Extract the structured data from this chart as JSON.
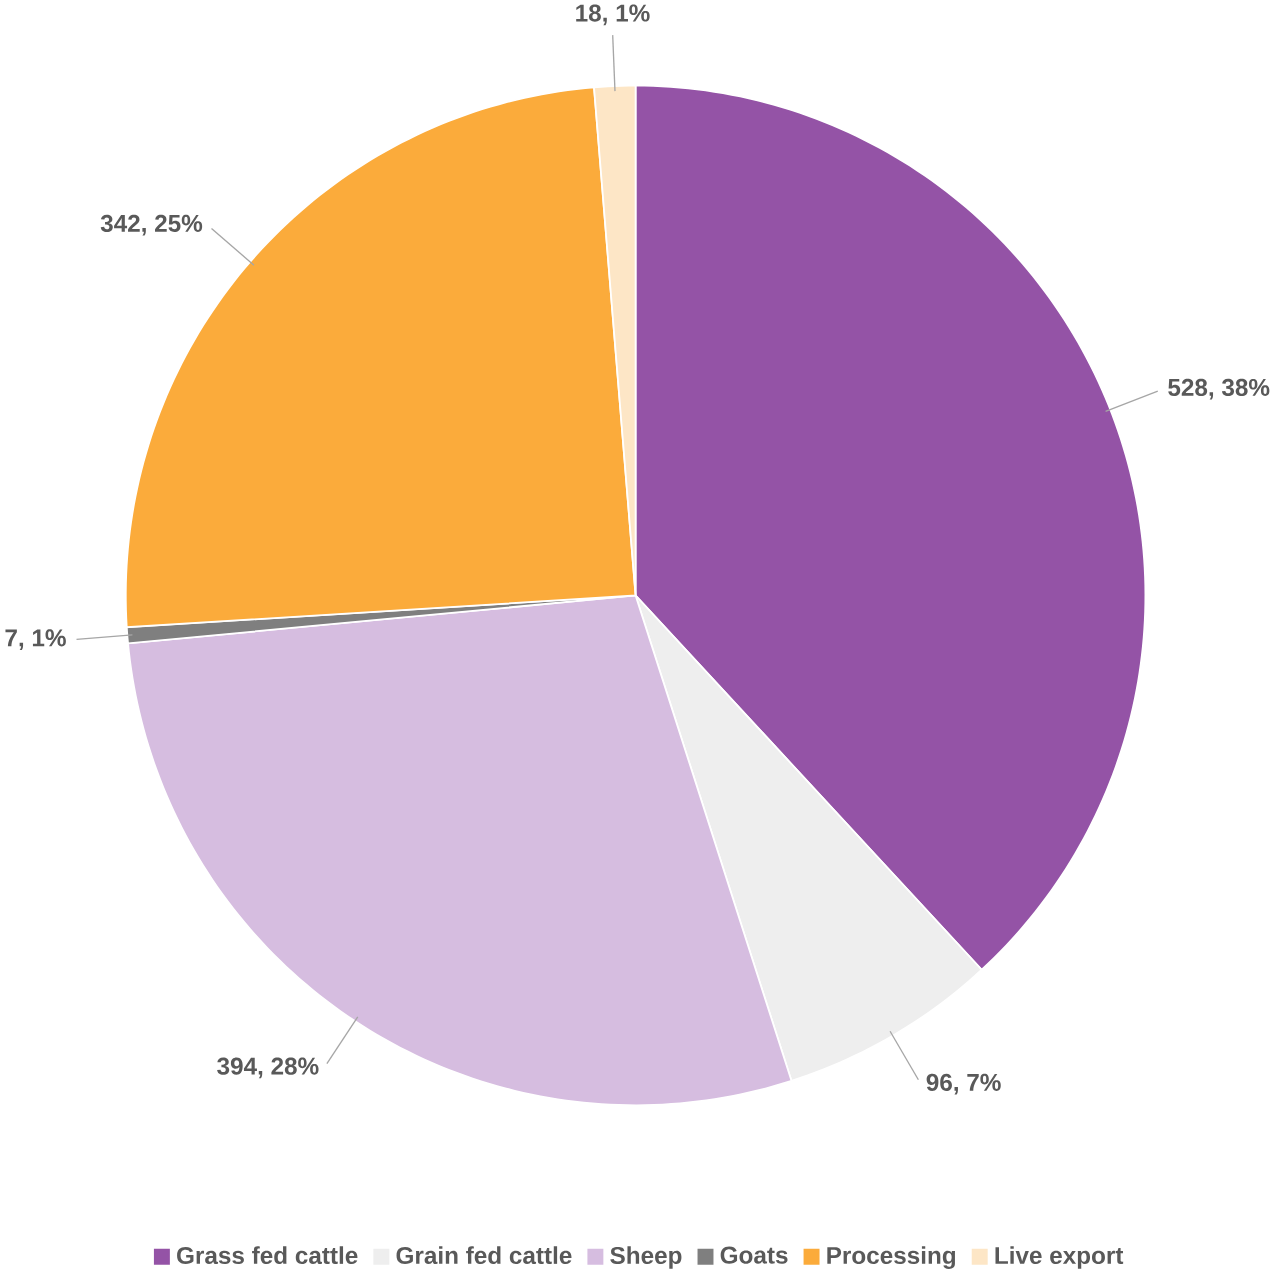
{
  "chart_data": {
    "type": "pie",
    "categories": [
      "Grass fed cattle",
      "Grain fed cattle",
      "Sheep",
      "Goats",
      "Processing",
      "Live export"
    ],
    "values": [
      528,
      96,
      394,
      7,
      342,
      18
    ],
    "colors": [
      "#9453a6",
      "#eeeeee",
      "#d6bde0",
      "#7f7f7f",
      "#fbab3b",
      "#fde6c6"
    ],
    "value_labels": [
      "528, 38%",
      "96, 7%",
      "394, 28%",
      "7, 1%",
      "342, 25%",
      "18, 1%"
    ],
    "legend": "bottom"
  }
}
